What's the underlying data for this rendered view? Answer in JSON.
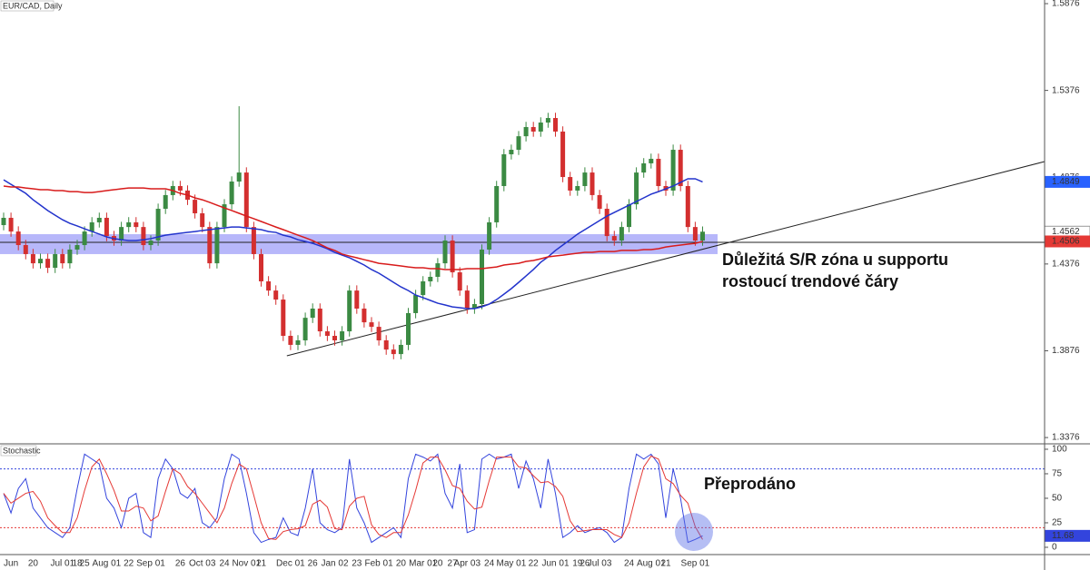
{
  "chart_data": [
    {
      "type": "candlestick",
      "title": "EUR/CAD, Daily",
      "categories": [
        null,
        "Jun",
        null,
        null,
        "20",
        null,
        null,
        null,
        "Jul 01",
        null,
        "18",
        "25",
        null,
        null,
        "Aug 01",
        null,
        null,
        "22",
        null,
        null,
        "Sep 01",
        null,
        null,
        null,
        "26",
        null,
        null,
        "Oct 03",
        null,
        null,
        "24",
        null,
        null,
        "Nov 01",
        null,
        "21",
        null,
        null,
        null,
        "Dec 01",
        null,
        null,
        "26",
        null,
        null,
        "Jan 02",
        null,
        null,
        "23",
        null,
        null,
        "Feb 01",
        null,
        null,
        "20",
        null,
        null,
        "Mar 01",
        null,
        "20",
        null,
        "27",
        null,
        "Apr 03",
        null,
        null,
        "24",
        null,
        null,
        "May 01",
        null,
        null,
        "22",
        null,
        null,
        "Jun 01",
        null,
        null,
        "19",
        "26",
        null,
        "Jul 03",
        null,
        null,
        null,
        "24",
        null,
        null,
        "Aug 01",
        null,
        "21",
        null,
        null,
        null,
        "Sep 01",
        null
      ],
      "open": [
        1.46,
        1.4642,
        1.4563,
        1.4485,
        1.4433,
        1.438,
        1.4406,
        1.4354,
        1.4433,
        1.438,
        1.4459,
        1.4485,
        1.4563,
        1.4616,
        1.4642,
        1.4537,
        1.4511,
        1.4589,
        1.4616,
        1.4589,
        1.4485,
        1.4511,
        1.4694,
        1.4773,
        1.4825,
        1.4799,
        1.4746,
        1.4668,
        1.4589,
        1.438,
        1.4589,
        1.472,
        1.4851,
        1.4903,
        1.4589,
        1.4433,
        1.4276,
        1.4223,
        1.4171,
        1.3962,
        1.391,
        1.3936,
        1.4066,
        1.4119,
        1.3988,
        1.3962,
        1.3936,
        1.3988,
        1.4223,
        1.4119,
        1.404,
        1.4014,
        1.3936,
        1.3883,
        1.3857,
        1.391,
        1.4093,
        1.4197,
        1.4276,
        1.4302,
        1.438,
        1.4511,
        1.4328,
        1.4223,
        1.4119,
        1.4145,
        1.4459,
        1.4616,
        1.4825,
        1.5008,
        1.5034,
        1.5112,
        1.5165,
        1.5139,
        1.5191,
        1.5217,
        1.5139,
        1.4877,
        1.4799,
        1.4825,
        1.4903,
        1.4773,
        1.4694,
        1.4537,
        1.4511,
        1.4589,
        1.472,
        1.4903,
        1.4956,
        1.4982,
        1.4825,
        1.4799,
        1.5034,
        1.4825,
        1.4589,
        1.4511
      ],
      "high": [
        1.4672,
        1.4672,
        1.4593,
        1.4515,
        1.4463,
        1.4436,
        1.4436,
        1.4463,
        1.4463,
        1.4489,
        1.4515,
        1.4593,
        1.4646,
        1.4672,
        1.4672,
        1.4567,
        1.4619,
        1.4646,
        1.4646,
        1.4619,
        1.4541,
        1.4724,
        1.4803,
        1.4855,
        1.4855,
        1.4829,
        1.4776,
        1.4698,
        1.4619,
        1.4619,
        1.475,
        1.4881,
        1.5285,
        1.4933,
        1.4619,
        1.4463,
        1.4306,
        1.4253,
        1.4201,
        1.3992,
        1.3966,
        1.4096,
        1.4149,
        1.4149,
        1.4018,
        1.3992,
        1.4018,
        1.4253,
        1.4253,
        1.4149,
        1.407,
        1.4044,
        1.3966,
        1.3913,
        1.394,
        1.4123,
        1.4227,
        1.4306,
        1.4332,
        1.441,
        1.4541,
        1.4541,
        1.4358,
        1.4253,
        1.4175,
        1.4489,
        1.4646,
        1.4855,
        1.5038,
        1.5064,
        1.5142,
        1.5195,
        1.5195,
        1.5221,
        1.5247,
        1.5247,
        1.5169,
        1.4907,
        1.4855,
        1.4933,
        1.4933,
        1.4803,
        1.4724,
        1.4567,
        1.4619,
        1.475,
        1.4933,
        1.4986,
        1.5012,
        1.5012,
        1.4855,
        1.5064,
        1.5064,
        1.4855,
        1.4619,
        1.4592
      ],
      "low": [
        1.457,
        1.4533,
        1.4455,
        1.4403,
        1.435,
        1.435,
        1.4324,
        1.4324,
        1.435,
        1.435,
        1.4429,
        1.4455,
        1.4533,
        1.4586,
        1.4507,
        1.4481,
        1.4481,
        1.4559,
        1.4559,
        1.4455,
        1.4455,
        1.4481,
        1.4664,
        1.4743,
        1.4769,
        1.4716,
        1.4638,
        1.4559,
        1.435,
        1.435,
        1.4559,
        1.469,
        1.4821,
        1.4559,
        1.4403,
        1.4246,
        1.4193,
        1.4141,
        1.3932,
        1.388,
        1.388,
        1.3906,
        1.4036,
        1.3958,
        1.3932,
        1.3906,
        1.3906,
        1.3958,
        1.4089,
        1.401,
        1.3984,
        1.3906,
        1.3853,
        1.3827,
        1.3827,
        1.388,
        1.4063,
        1.4167,
        1.4246,
        1.4272,
        1.435,
        1.4298,
        1.4193,
        1.4089,
        1.4089,
        1.4115,
        1.4429,
        1.4586,
        1.4795,
        1.4978,
        1.5004,
        1.5082,
        1.5109,
        1.5109,
        1.5161,
        1.5109,
        1.4847,
        1.4769,
        1.4769,
        1.4795,
        1.4743,
        1.4664,
        1.4507,
        1.4481,
        1.4481,
        1.4559,
        1.469,
        1.4873,
        1.4926,
        1.4795,
        1.4769,
        1.4769,
        1.4795,
        1.4559,
        1.4481,
        1.4481
      ],
      "close": [
        1.4642,
        1.4563,
        1.4485,
        1.4433,
        1.438,
        1.4406,
        1.4354,
        1.4433,
        1.438,
        1.4459,
        1.4485,
        1.4563,
        1.4616,
        1.4642,
        1.4537,
        1.4511,
        1.4589,
        1.4616,
        1.4589,
        1.4485,
        1.4511,
        1.4694,
        1.4773,
        1.4825,
        1.4799,
        1.4746,
        1.4668,
        1.4589,
        1.438,
        1.4589,
        1.472,
        1.4851,
        1.4903,
        1.4589,
        1.4433,
        1.4276,
        1.4223,
        1.4171,
        1.3962,
        1.391,
        1.3936,
        1.4066,
        1.4119,
        1.3988,
        1.3962,
        1.3936,
        1.3988,
        1.4223,
        1.4119,
        1.404,
        1.4014,
        1.3936,
        1.3883,
        1.3857,
        1.391,
        1.4093,
        1.4197,
        1.4276,
        1.4302,
        1.438,
        1.4511,
        1.4328,
        1.4223,
        1.4119,
        1.4145,
        1.4459,
        1.4616,
        1.4825,
        1.5008,
        1.5034,
        1.5112,
        1.5165,
        1.5139,
        1.5191,
        1.5217,
        1.5139,
        1.4877,
        1.4799,
        1.4825,
        1.4903,
        1.4773,
        1.4694,
        1.4537,
        1.4511,
        1.4589,
        1.472,
        1.4903,
        1.4956,
        1.4982,
        1.4825,
        1.4799,
        1.5034,
        1.4825,
        1.4589,
        1.4511,
        1.4562
      ],
      "up_color": "#3b8a43",
      "down_color": "#d32f2f",
      "series": [
        {
          "color": "#2233cc",
          "values": [
            1.4861,
            1.4835,
            1.4809,
            1.4783,
            1.4746,
            1.4715,
            1.4684,
            1.4657,
            1.4631,
            1.461,
            1.4595,
            1.4579,
            1.4563,
            1.4548,
            1.4532,
            1.4522,
            1.4516,
            1.4511,
            1.4511,
            1.4516,
            1.4522,
            1.4532,
            1.4542,
            1.4548,
            1.4553,
            1.4558,
            1.4563,
            1.4569,
            1.4574,
            1.4579,
            1.4584,
            1.4589,
            1.4589,
            1.4584,
            1.4579,
            1.4574,
            1.4563,
            1.4558,
            1.4542,
            1.4532,
            1.4516,
            1.4506,
            1.4495,
            1.448,
            1.4464,
            1.4443,
            1.4427,
            1.4412,
            1.4391,
            1.437,
            1.4344,
            1.4323,
            1.4297,
            1.427,
            1.4244,
            1.4223,
            1.4197,
            1.4182,
            1.4166,
            1.415,
            1.414,
            1.4129,
            1.4124,
            1.4119,
            1.4119,
            1.4129,
            1.4145,
            1.4171,
            1.4202,
            1.4234,
            1.427,
            1.4307,
            1.4344,
            1.4386,
            1.4417,
            1.4454,
            1.4485,
            1.4516,
            1.4548,
            1.4574,
            1.46,
            1.4626,
            1.4652,
            1.4673,
            1.4694,
            1.4715,
            1.4736,
            1.4757,
            1.4778,
            1.4793,
            1.4809,
            1.4825,
            1.4846,
            1.4867,
            1.4867,
            1.4849
          ]
        },
        {
          "color": "#d81b1b",
          "values": [
            1.4825,
            1.482,
            1.482,
            1.4814,
            1.4809,
            1.4804,
            1.4804,
            1.4799,
            1.4799,
            1.4793,
            1.4793,
            1.4788,
            1.4788,
            1.4793,
            1.4799,
            1.4804,
            1.4809,
            1.4814,
            1.4814,
            1.4814,
            1.4809,
            1.4809,
            1.4809,
            1.4799,
            1.4783,
            1.4773,
            1.4757,
            1.4746,
            1.4731,
            1.4715,
            1.4699,
            1.4684,
            1.4668,
            1.4652,
            1.4637,
            1.4621,
            1.4605,
            1.4589,
            1.4574,
            1.4558,
            1.4542,
            1.4527,
            1.4511,
            1.449,
            1.4469,
            1.4454,
            1.4433,
            1.4422,
            1.4412,
            1.4401,
            1.4391,
            1.438,
            1.4375,
            1.437,
            1.4365,
            1.4359,
            1.4354,
            1.4354,
            1.4349,
            1.4349,
            1.4344,
            1.4344,
            1.4344,
            1.4349,
            1.4349,
            1.4349,
            1.4354,
            1.4359,
            1.437,
            1.4375,
            1.438,
            1.4391,
            1.4396,
            1.4406,
            1.4417,
            1.4422,
            1.4427,
            1.4433,
            1.4438,
            1.4443,
            1.4443,
            1.4448,
            1.4448,
            1.4448,
            1.4454,
            1.4454,
            1.4454,
            1.4459,
            1.4459,
            1.4464,
            1.4474,
            1.448,
            1.4485,
            1.449,
            1.4495,
            1.4506
          ]
        }
      ],
      "ylim": [
        1.3345,
        1.5897
      ],
      "yticks": [
        1.3376,
        1.3876,
        1.4376,
        1.4876,
        1.5376,
        1.5876
      ],
      "zone": {
        "from": 1.4433,
        "to": 1.4548,
        "color": "#7b7bf5"
      },
      "hline": 1.4501,
      "trendline": {
        "from": 1.3847,
        "to": 1.4966
      },
      "price_labels": [
        {
          "value": 1.4849,
          "color": "#2962ff"
        },
        {
          "value": 1.4562,
          "color": "#ffffff"
        },
        {
          "value": 1.4506,
          "color": "#e53935"
        }
      ],
      "annotation": [
        "Důležitá S/R zóna u supportu",
        "rostoucí trendové čáry"
      ]
    },
    {
      "type": "line",
      "title": "Stochastic",
      "series": [
        {
          "color": "#3344dd",
          "tag": true,
          "values": [
            55,
            35,
            60,
            70,
            40,
            30,
            20,
            15,
            10,
            20,
            60,
            95,
            90,
            85,
            50,
            40,
            20,
            50,
            55,
            15,
            10,
            70,
            90,
            80,
            55,
            50,
            60,
            25,
            20,
            30,
            70,
            95,
            90,
            55,
            15,
            5,
            8,
            10,
            30,
            15,
            12,
            40,
            80,
            25,
            18,
            15,
            20,
            90,
            40,
            25,
            5,
            10,
            15,
            20,
            10,
            70,
            95,
            92,
            88,
            95,
            55,
            40,
            85,
            15,
            18,
            90,
            95,
            90,
            92,
            95,
            60,
            88,
            70,
            40,
            90,
            55,
            10,
            15,
            22,
            15,
            18,
            20,
            15,
            5,
            10,
            60,
            95,
            90,
            95,
            85,
            30,
            80,
            50,
            5,
            8,
            11.68
          ]
        },
        {
          "color": "#e53935",
          "values": [
            55,
            45,
            50,
            55,
            57,
            47,
            30,
            22,
            15,
            15,
            30,
            58,
            82,
            90,
            75,
            58,
            37,
            37,
            42,
            40,
            27,
            32,
            57,
            80,
            75,
            62,
            55,
            45,
            35,
            25,
            40,
            65,
            85,
            80,
            53,
            25,
            9,
            8,
            16,
            18,
            19,
            22,
            44,
            48,
            41,
            19,
            18,
            42,
            50,
            52,
            23,
            13,
            10,
            15,
            15,
            33,
            58,
            86,
            92,
            92,
            79,
            63,
            60,
            47,
            39,
            41,
            68,
            92,
            92,
            92,
            82,
            81,
            73,
            66,
            67,
            62,
            52,
            27,
            16,
            17,
            18,
            18,
            18,
            13,
            10,
            25,
            55,
            82,
            93,
            90,
            70,
            65,
            53,
            45,
            21,
            8
          ]
        }
      ],
      "ylim": [
        -6.5,
        104.6
      ],
      "yticks": [
        0,
        25,
        50,
        75,
        100
      ],
      "levels": [
        {
          "value": 80,
          "color": "#3344dd"
        },
        {
          "value": 20,
          "color": "#e53935"
        }
      ],
      "annotation": "Přeprodáno"
    }
  ]
}
